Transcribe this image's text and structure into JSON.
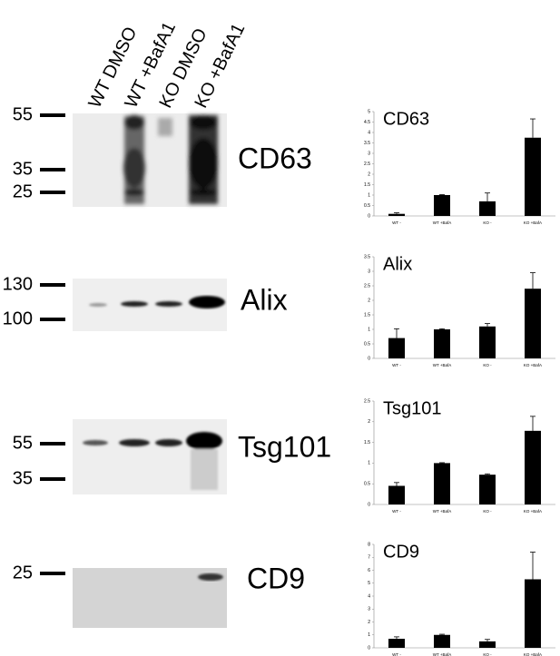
{
  "blots": {
    "lanes": [
      "WT DMSO",
      "WT +BafA1",
      "KO DMSO",
      "KO +BafA1"
    ],
    "panels": [
      {
        "protein": "CD63",
        "markers": [
          "55",
          "35",
          "25"
        ]
      },
      {
        "protein": "Alix",
        "markers": [
          "130",
          "100"
        ]
      },
      {
        "protein": "Tsg101",
        "markers": [
          "55",
          "35"
        ]
      },
      {
        "protein": "CD9",
        "markers": [
          "25"
        ]
      }
    ]
  },
  "chart_data": [
    {
      "type": "bar",
      "title": "CD63",
      "categories": [
        "WT -",
        "WT +BafA",
        "KO -",
        "KO +BafA"
      ],
      "values": [
        0.1,
        1.0,
        0.7,
        3.75
      ],
      "errors": [
        0.05,
        0.02,
        0.4,
        0.9
      ],
      "color": "#000000",
      "ylim": [
        0,
        5
      ],
      "yticks": [
        0,
        0.5,
        1,
        1.5,
        2,
        2.5,
        3,
        3.5,
        4,
        4.5,
        5
      ]
    },
    {
      "type": "bar",
      "title": "Alix",
      "categories": [
        "WT -",
        "WT +BafA",
        "KO -",
        "KO +BafA"
      ],
      "values": [
        0.7,
        1.0,
        1.1,
        2.4
      ],
      "errors": [
        0.32,
        0.02,
        0.1,
        0.55
      ],
      "color": "#000000",
      "ylim": [
        0,
        3.5
      ],
      "yticks": [
        0,
        0.5,
        1,
        1.5,
        2,
        2.5,
        3,
        3.5
      ]
    },
    {
      "type": "bar",
      "title": "Tsg101",
      "categories": [
        "WT -",
        "WT +BafA",
        "KO -",
        "KO +BafA"
      ],
      "values": [
        0.45,
        1.0,
        0.72,
        1.78
      ],
      "errors": [
        0.08,
        0.01,
        0.02,
        0.35
      ],
      "color": "#000000",
      "ylim": [
        0,
        2.5
      ],
      "yticks": [
        0,
        0.5,
        1,
        1.5,
        2,
        2.5
      ]
    },
    {
      "type": "bar",
      "title": "CD9",
      "categories": [
        "WT -",
        "WT +BafA",
        "KO -",
        "KO +BafA"
      ],
      "values": [
        0.7,
        1.0,
        0.5,
        5.3
      ],
      "errors": [
        0.15,
        0.05,
        0.15,
        2.1
      ],
      "color": "#000000",
      "ylim": [
        0,
        8
      ],
      "yticks": [
        0,
        1,
        2,
        3,
        4,
        5,
        6,
        7,
        8
      ]
    }
  ]
}
